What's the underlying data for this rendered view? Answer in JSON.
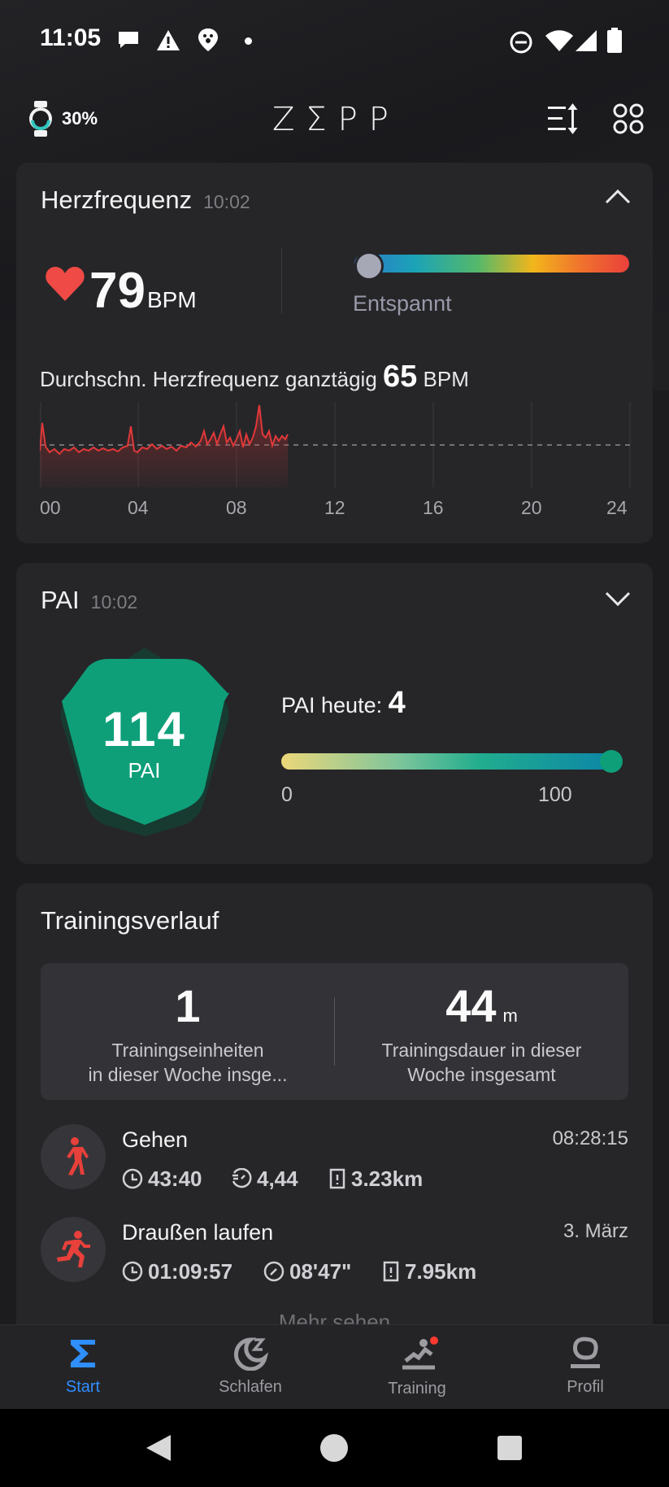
{
  "status_bar": {
    "time": "11:05"
  },
  "header": {
    "watch_battery": "30%",
    "logo": "ZΣPP"
  },
  "heart_rate": {
    "title": "Herzfrequenz",
    "time": "10:02",
    "value": "79",
    "unit": "BPM",
    "zone_label": "Entspannt",
    "avg_label": "Durchschn. Herzfrequenz ganztägig",
    "avg_value": "65",
    "avg_unit": "BPM",
    "x_ticks": [
      "00",
      "04",
      "08",
      "12",
      "16",
      "20",
      "24"
    ],
    "colors": {
      "line": "#e0383a",
      "heart": "#ef4a45"
    }
  },
  "pai": {
    "title": "PAI",
    "time": "10:02",
    "total": "114",
    "unit": "PAI",
    "today_label": "PAI heute:",
    "today_value": "4",
    "bar_min": "0",
    "bar_max": "100",
    "colors": {
      "badge": "#0e9f79"
    }
  },
  "training": {
    "title": "Trainingsverlauf",
    "sessions_count": "1",
    "sessions_caption_1": "Trainingseinheiten",
    "sessions_caption_2": "in dieser Woche insge...",
    "duration_value": "44",
    "duration_unit": "m",
    "duration_caption_1": "Trainingsdauer in dieser",
    "duration_caption_2": "Woche insgesamt",
    "activities": [
      {
        "name": "Gehen",
        "date": "08:28:15",
        "duration": "43:40",
        "pace": "4,44",
        "distance": "3.23km",
        "icon": "walking-icon"
      },
      {
        "name": "Draußen laufen",
        "date": "3. März",
        "duration": "01:09:57",
        "pace": "08'47\"",
        "distance": "7.95km",
        "icon": "running-icon"
      }
    ],
    "more_label": "Mehr sehen"
  },
  "bottom_nav": {
    "items": [
      {
        "label": "Start",
        "icon": "sigma-icon",
        "active": true
      },
      {
        "label": "Schlafen",
        "icon": "moon-icon",
        "active": false
      },
      {
        "label": "Training",
        "icon": "workout-icon",
        "active": false
      },
      {
        "label": "Profil",
        "icon": "profile-icon",
        "active": false
      }
    ],
    "colors": {
      "active": "#2f8fff"
    }
  }
}
